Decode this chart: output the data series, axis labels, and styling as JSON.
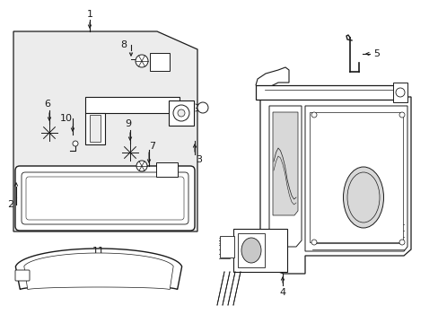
{
  "bg_color": "#ffffff",
  "line_color": "#1a1a1a",
  "box_bg": "#ececec",
  "figsize": [
    4.89,
    3.6
  ],
  "dpi": 100
}
